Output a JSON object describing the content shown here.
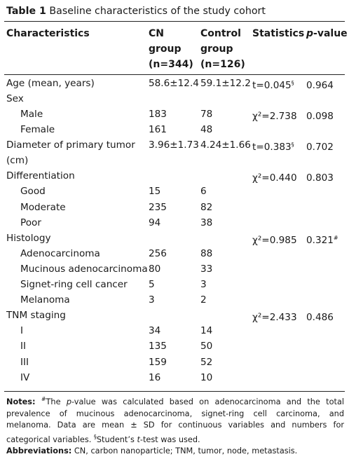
{
  "table": {
    "label": "Table 1",
    "title": "Baseline characteristics of the study cohort"
  },
  "header": {
    "characteristics": "Characteristics",
    "cn_group": [
      "CN",
      "group",
      "(n=344)"
    ],
    "control_group": [
      "Control",
      "group",
      "(n=126)"
    ],
    "statistics": "Statistics",
    "p_value_italic": "p",
    "p_value_rest": "-value"
  },
  "rows": [
    {
      "label": "Age (mean, years)",
      "indent": false,
      "cn": "58.6±12.4",
      "ctrl": "59.1±12.2",
      "stat": "t=0.045",
      "stat_sup": "§",
      "p": "0.964",
      "p_sup": ""
    },
    {
      "label": "Sex",
      "indent": false,
      "cn": "",
      "ctrl": "",
      "stat": "",
      "stat_sup": "",
      "p": "",
      "p_sup": ""
    },
    {
      "label": "Male",
      "indent": true,
      "cn": "183",
      "ctrl": "78",
      "stat": "χ²=2.738",
      "stat_sup": "",
      "p": "0.098",
      "p_sup": ""
    },
    {
      "label": "Female",
      "indent": true,
      "cn": "161",
      "ctrl": "48",
      "stat": "",
      "stat_sup": "",
      "p": "",
      "p_sup": ""
    },
    {
      "label": "Diameter of primary tumor (cm)",
      "indent": false,
      "tall": true,
      "cn": "3.96±1.73",
      "ctrl": "4.24±1.66",
      "stat": "t=0.383",
      "stat_sup": "§",
      "p": "0.702",
      "p_sup": ""
    },
    {
      "label": "Differentiation",
      "indent": false,
      "cn": "",
      "ctrl": "",
      "stat": "χ²=0.440",
      "stat_sup": "",
      "p": "0.803",
      "p_sup": ""
    },
    {
      "label": "Good",
      "indent": true,
      "cn": "15",
      "ctrl": "6",
      "stat": "",
      "stat_sup": "",
      "p": "",
      "p_sup": ""
    },
    {
      "label": "Moderate",
      "indent": true,
      "cn": "235",
      "ctrl": "82",
      "stat": "",
      "stat_sup": "",
      "p": "",
      "p_sup": ""
    },
    {
      "label": "Poor",
      "indent": true,
      "cn": "94",
      "ctrl": "38",
      "stat": "",
      "stat_sup": "",
      "p": "",
      "p_sup": ""
    },
    {
      "label": "Histology",
      "indent": false,
      "cn": "",
      "ctrl": "",
      "stat": "χ²=0.985",
      "stat_sup": "",
      "p": "0.321",
      "p_sup": "#"
    },
    {
      "label": "Adenocarcinoma",
      "indent": true,
      "cn": "256",
      "ctrl": "88",
      "stat": "",
      "stat_sup": "",
      "p": "",
      "p_sup": ""
    },
    {
      "label": "Mucinous adenocarcinoma",
      "indent": true,
      "cn": "80",
      "ctrl": "33",
      "stat": "",
      "stat_sup": "",
      "p": "",
      "p_sup": ""
    },
    {
      "label": "Signet-ring cell cancer",
      "indent": true,
      "cn": "5",
      "ctrl": "3",
      "stat": "",
      "stat_sup": "",
      "p": "",
      "p_sup": ""
    },
    {
      "label": "Melanoma",
      "indent": true,
      "cn": "3",
      "ctrl": "2",
      "stat": "",
      "stat_sup": "",
      "p": "",
      "p_sup": ""
    },
    {
      "label": "TNM staging",
      "indent": false,
      "cn": "",
      "ctrl": "",
      "stat": "χ²=2.433",
      "stat_sup": "",
      "p": "0.486",
      "p_sup": ""
    },
    {
      "label": "I",
      "indent": true,
      "cn": "34",
      "ctrl": "14",
      "stat": "",
      "stat_sup": "",
      "p": "",
      "p_sup": ""
    },
    {
      "label": "II",
      "indent": true,
      "cn": "135",
      "ctrl": "50",
      "stat": "",
      "stat_sup": "",
      "p": "",
      "p_sup": ""
    },
    {
      "label": "III",
      "indent": true,
      "cn": "159",
      "ctrl": "52",
      "stat": "",
      "stat_sup": "",
      "p": "",
      "p_sup": ""
    },
    {
      "label": "IV",
      "indent": true,
      "cn": "16",
      "ctrl": "10",
      "stat": "",
      "stat_sup": "",
      "p": "",
      "p_sup": ""
    }
  ],
  "notes": {
    "notes_label": "Notes:",
    "note_hash_mark": "#",
    "note_hash_pre": "The ",
    "note_hash_italic": "p",
    "note_hash_post": "-value was calculated based on adenocarcinoma and the total prevalence of mucinous adenocarcinoma, signet-ring cell carcinoma, and melanoma. Data are mean ± SD for continuous variables and numbers for categorical variables.",
    "note_s_mark": "§",
    "note_s_pre": "Student’s ",
    "note_s_italic": "t",
    "note_s_post": "-test was used.",
    "abbrev_label": "Abbreviations:",
    "abbrev_text": " CN, carbon nanoparticle; TNM, tumor, node, metastasis."
  }
}
